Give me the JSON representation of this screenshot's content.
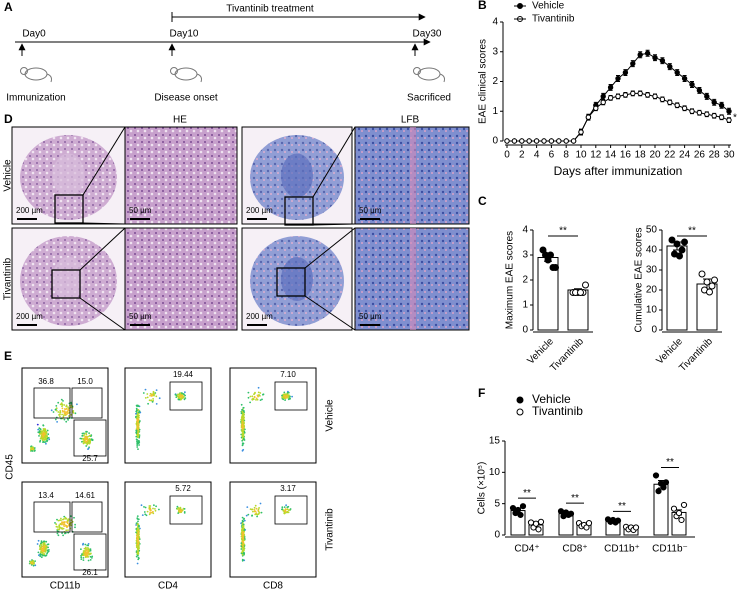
{
  "panel_labels": [
    "A",
    "B",
    "C",
    "D",
    "E",
    "F"
  ],
  "timeline": {
    "treatment": "Tivantinib treatment",
    "days": [
      "Day0",
      "Day10",
      "Day30"
    ],
    "events": [
      "Immunization",
      "Disease onset",
      "Sacrificed"
    ]
  },
  "histology": {
    "stains": [
      "HE",
      "LFB"
    ],
    "groups": [
      "Vehicle",
      "Tivantinib"
    ],
    "scale_bars": [
      "200 µm",
      "50 µm"
    ]
  },
  "flow": {
    "groups": [
      "Vehicle",
      "Tivantinib"
    ],
    "x_labels": [
      "CD11b",
      "CD4",
      "CD8"
    ],
    "y_label": "CD45",
    "gates": [
      [
        [
          "36.8",
          "15.0",
          "25.7"
        ],
        [
          "19.44"
        ],
        [
          "7.10"
        ]
      ],
      [
        [
          "13.4",
          "14.61",
          "26.1"
        ],
        [
          "5.72"
        ],
        [
          "3.17"
        ]
      ]
    ]
  },
  "chart_data": [
    {
      "type": "line",
      "y_label": "EAE clinical scores",
      "x_label": "Days after immunization",
      "x": [
        0,
        1,
        2,
        3,
        4,
        5,
        6,
        7,
        8,
        9,
        10,
        11,
        12,
        13,
        14,
        15,
        16,
        17,
        18,
        19,
        20,
        21,
        22,
        23,
        24,
        25,
        26,
        27,
        28,
        29,
        30
      ],
      "series": [
        {
          "name": "Vehicle",
          "color": "#000000",
          "marker": "filled",
          "values": [
            0,
            0,
            0,
            0,
            0,
            0,
            0,
            0,
            0,
            0,
            0.3,
            0.8,
            1.2,
            1.5,
            1.8,
            2.1,
            2.3,
            2.6,
            2.9,
            2.95,
            2.8,
            2.7,
            2.5,
            2.3,
            2.1,
            1.9,
            1.7,
            1.5,
            1.3,
            1.2,
            1.0
          ],
          "errors": [
            0,
            0,
            0,
            0,
            0,
            0,
            0,
            0,
            0,
            0,
            0.1,
            0.1,
            0.1,
            0.1,
            0.1,
            0.1,
            0.1,
            0.1,
            0.1,
            0.1,
            0.1,
            0.1,
            0.1,
            0.1,
            0.1,
            0.1,
            0.1,
            0.1,
            0.1,
            0.1,
            0.1
          ]
        },
        {
          "name": "Tivantinib",
          "color": "#000000",
          "marker": "open",
          "values": [
            0,
            0,
            0,
            0,
            0,
            0,
            0,
            0,
            0,
            0,
            0.3,
            0.8,
            1.1,
            1.3,
            1.45,
            1.5,
            1.55,
            1.6,
            1.6,
            1.55,
            1.5,
            1.4,
            1.3,
            1.2,
            1.1,
            1.0,
            0.95,
            0.9,
            0.85,
            0.8,
            0.7
          ],
          "errors": [
            0,
            0,
            0,
            0,
            0,
            0,
            0,
            0,
            0,
            0,
            0.08,
            0.08,
            0.08,
            0.08,
            0.08,
            0.08,
            0.08,
            0.08,
            0.08,
            0.08,
            0.08,
            0.08,
            0.08,
            0.08,
            0.08,
            0.08,
            0.08,
            0.08,
            0.08,
            0.08,
            0.08
          ]
        }
      ],
      "xlim": [
        0,
        30
      ],
      "xticks": [
        0,
        2,
        4,
        6,
        8,
        10,
        12,
        14,
        16,
        18,
        20,
        22,
        24,
        26,
        28,
        30
      ],
      "ylim": [
        0,
        4
      ],
      "yticks": [
        0,
        1,
        2,
        3,
        4
      ],
      "annotation": "*"
    },
    {
      "type": "bar_scatter",
      "y_label": "Maximum EAE  scores",
      "categories": [
        "Vehicle",
        "Tivantinib"
      ],
      "markers": [
        "filled",
        "open"
      ],
      "values": [
        2.9,
        1.6
      ],
      "errors": [
        0.15,
        0.05
      ],
      "points": [
        [
          3.2,
          2.8,
          2.5,
          3.0,
          3.0,
          2.5
        ],
        [
          1.5,
          1.5,
          1.5,
          1.5,
          1.5,
          1.8
        ]
      ],
      "ylim": [
        0,
        4
      ],
      "yticks": [
        0,
        1,
        2,
        3,
        4
      ],
      "significance": "**"
    },
    {
      "type": "bar_scatter",
      "y_label": "Cumulative EAE  scores",
      "categories": [
        "Vehicle",
        "Tivantinib"
      ],
      "markers": [
        "filled",
        "open"
      ],
      "values": [
        42,
        23
      ],
      "errors": [
        2,
        2.5
      ],
      "points": [
        [
          45,
          43,
          40,
          38,
          37,
          44
        ],
        [
          28,
          24,
          22,
          20,
          19,
          25
        ]
      ],
      "ylim": [
        0,
        50
      ],
      "yticks": [
        0,
        10,
        20,
        30,
        40,
        50
      ],
      "significance": "**"
    },
    {
      "type": "grouped_bar_scatter",
      "y_label": "Cells (×10⁵)",
      "categories": [
        "CD4⁺",
        "CD8⁺",
        "CD11b⁺",
        "CD11b⁻"
      ],
      "series": [
        {
          "name": "Vehicle",
          "marker": "filled",
          "values": [
            3.9,
            3.4,
            2.3,
            8.1
          ],
          "errors": [
            0.4,
            0.3,
            0.2,
            0.6
          ],
          "points": [
            [
              4.3,
              3.5,
              4.0,
              3.2,
              4.6
            ],
            [
              3.8,
              3.0,
              3.6,
              3.2,
              3.4
            ],
            [
              2.5,
              2.1,
              2.4,
              2.0,
              2.3
            ],
            [
              9.5,
              7.0,
              8.2,
              7.6,
              8.4
            ]
          ]
        },
        {
          "name": "Tivantinib",
          "marker": "open",
          "values": [
            1.6,
            1.6,
            1.1,
            3.6
          ],
          "errors": [
            0.3,
            0.2,
            0.15,
            0.4
          ],
          "points": [
            [
              2.0,
              1.2,
              1.8,
              0.9,
              2.1
            ],
            [
              1.9,
              1.4,
              1.6,
              1.2,
              1.9
            ],
            [
              1.3,
              0.9,
              1.2,
              0.8,
              1.2
            ],
            [
              4.2,
              3.0,
              3.5,
              2.4,
              4.8
            ]
          ]
        }
      ],
      "ylim": [
        0,
        15
      ],
      "yticks": [
        0,
        5,
        10,
        15
      ],
      "significance": "**"
    }
  ]
}
